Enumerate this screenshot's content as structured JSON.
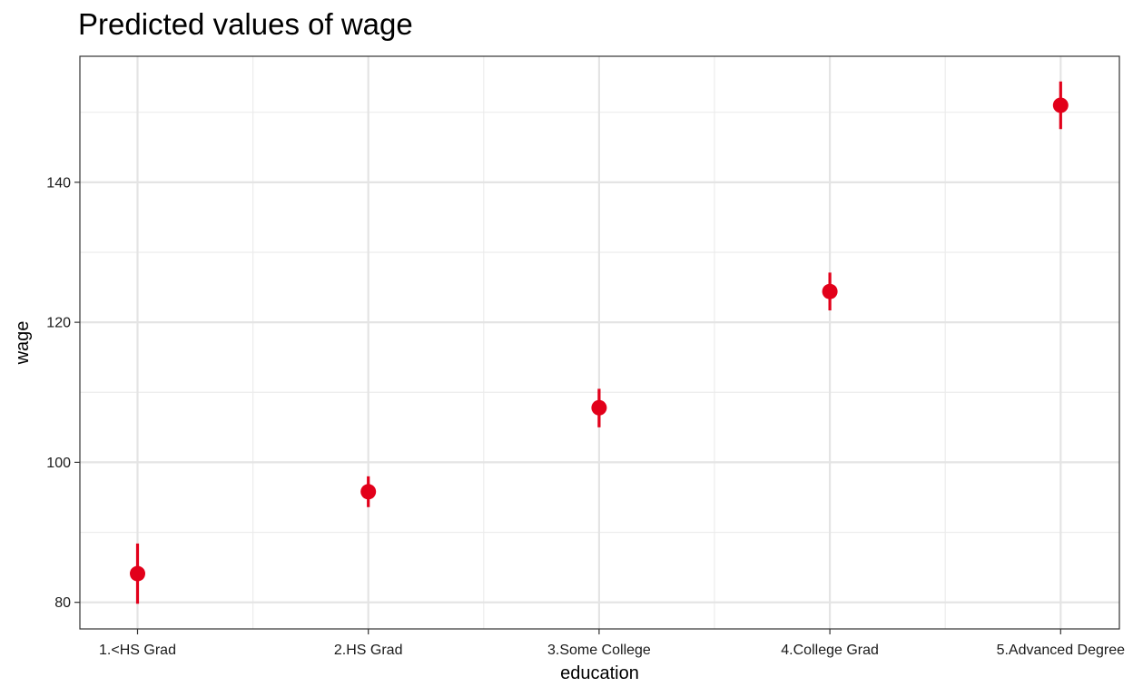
{
  "chart_data": {
    "type": "scatter",
    "title": "Predicted values of wage",
    "xlabel": "education",
    "ylabel": "wage",
    "categories": [
      "1.<HS Grad",
      "2.HS Grad",
      "3.Some College",
      "4.College Grad",
      "5.Advanced Degree"
    ],
    "series": [
      {
        "values": [
          84.1,
          95.8,
          107.8,
          124.4,
          151.0
        ],
        "ci_low": [
          79.8,
          93.6,
          105.0,
          121.7,
          147.6
        ],
        "ci_high": [
          88.4,
          98.0,
          110.5,
          127.1,
          154.4
        ]
      }
    ],
    "ylim": [
      76.2,
      158.0
    ],
    "yticks": [
      80,
      100,
      120,
      140
    ],
    "grid": true,
    "legend": "none",
    "color": "#e2001a"
  }
}
